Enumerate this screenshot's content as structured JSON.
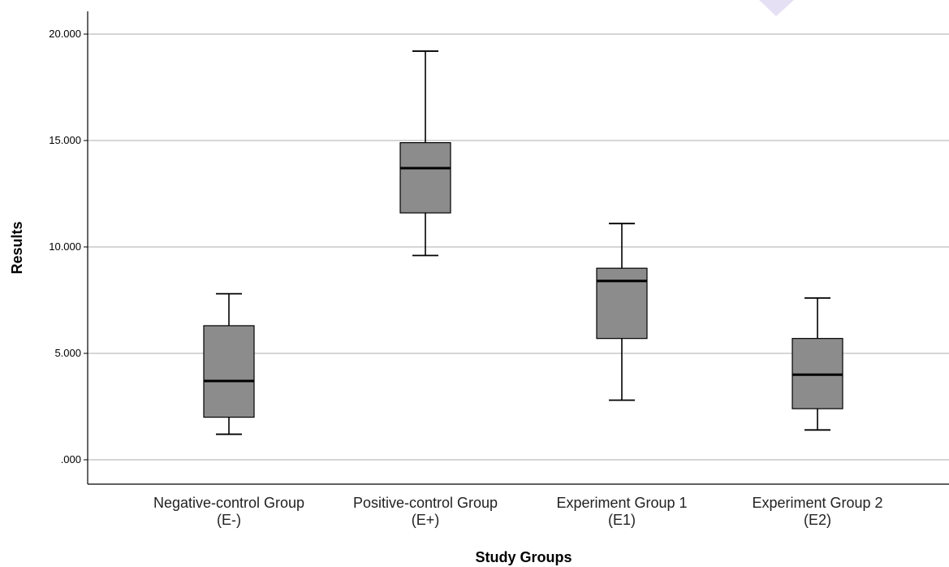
{
  "chart_data": {
    "type": "boxplot",
    "xlabel": "Study Groups",
    "ylabel": "Results",
    "ylim": [
      -1.0,
      21.0
    ],
    "yticks": [
      0,
      5,
      10,
      15,
      20
    ],
    "ytick_labels": [
      ".000",
      "5.000",
      "10.000",
      "15.000",
      "20.000"
    ],
    "grid": "horizontal",
    "categories": [
      [
        "Negative-control Group",
        "(E-)"
      ],
      [
        "Positive-control Group",
        "(E+)"
      ],
      [
        "Experiment Group 1",
        "(E1)"
      ],
      [
        "Experiment Group 2",
        "(E2)"
      ]
    ],
    "boxes": [
      {
        "min": 1.2,
        "q1": 2.0,
        "median": 3.7,
        "q3": 6.3,
        "max": 7.8
      },
      {
        "min": 9.6,
        "q1": 11.6,
        "median": 13.7,
        "q3": 14.9,
        "max": 19.2
      },
      {
        "min": 2.8,
        "q1": 5.7,
        "median": 8.4,
        "q3": 9.0,
        "max": 11.1
      },
      {
        "min": 1.4,
        "q1": 2.4,
        "median": 4.0,
        "q3": 5.7,
        "max": 7.6
      }
    ],
    "colors": {
      "box": "#8c8c8c",
      "grid": "#c8c8c8",
      "stroke": "#000000",
      "accent": "#e6e0f5"
    }
  }
}
